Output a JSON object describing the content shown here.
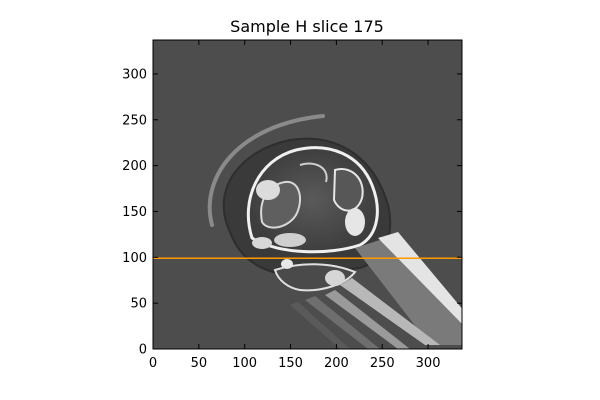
{
  "figure": {
    "title": "Sample H slice 175"
  },
  "axes": {
    "xlim": [
      0,
      337
    ],
    "ylim": [
      0,
      337
    ],
    "x_ticks": [
      {
        "value": 0,
        "label": "0"
      },
      {
        "value": 50,
        "label": "50"
      },
      {
        "value": 100,
        "label": "100"
      },
      {
        "value": 150,
        "label": "150"
      },
      {
        "value": 200,
        "label": "200"
      },
      {
        "value": 250,
        "label": "250"
      },
      {
        "value": 300,
        "label": "300"
      }
    ],
    "y_ticks": [
      {
        "value": 0,
        "label": "0"
      },
      {
        "value": 50,
        "label": "50"
      },
      {
        "value": 100,
        "label": "100"
      },
      {
        "value": 150,
        "label": "150"
      },
      {
        "value": 200,
        "label": "200"
      },
      {
        "value": 250,
        "label": "250"
      },
      {
        "value": 300,
        "label": "300"
      }
    ]
  },
  "image": {
    "background_color": "#4d4d4d",
    "content": "grayscale CT slice of a skull"
  },
  "overlay_line": {
    "y_value": 99,
    "color": "#ff9900"
  }
}
